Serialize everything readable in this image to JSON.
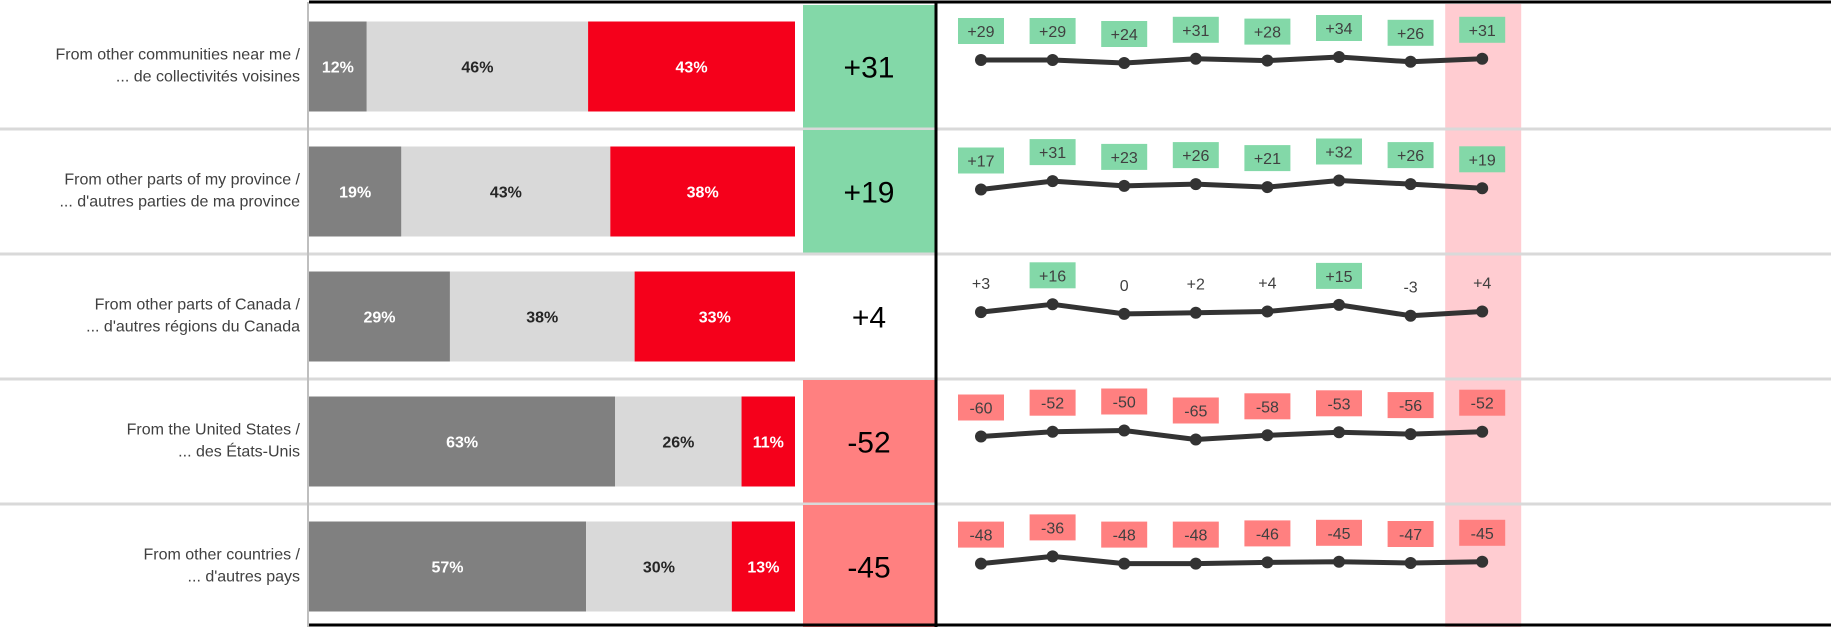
{
  "chart_data": {
    "type": "bar",
    "stacked": true,
    "percent_scale": true,
    "rows": [
      {
        "label_en": "From other communities near me /",
        "label_fr": "... de collectivités voisines",
        "segments": [
          12,
          46,
          43
        ],
        "segment_labels": [
          "12%",
          "46%",
          "43%"
        ],
        "net": "+31",
        "trend": [
          29,
          29,
          24,
          31,
          28,
          34,
          26,
          31
        ],
        "trend_labels": [
          "+29",
          "+29",
          "+24",
          "+31",
          "+28",
          "+34",
          "+26",
          "+31"
        ]
      },
      {
        "label_en": "From other parts of my province /",
        "label_fr": "... d'autres parties de ma province",
        "segments": [
          19,
          43,
          38
        ],
        "segment_labels": [
          "19%",
          "43%",
          "38%"
        ],
        "net": "+19",
        "trend": [
          17,
          31,
          23,
          26,
          21,
          32,
          26,
          19
        ],
        "trend_labels": [
          "+17",
          "+31",
          "+23",
          "+26",
          "+21",
          "+32",
          "+26",
          "+19"
        ]
      },
      {
        "label_en": "From other parts of Canada /",
        "label_fr": "... d'autres régions du Canada",
        "segments": [
          29,
          38,
          33
        ],
        "segment_labels": [
          "29%",
          "38%",
          "33%"
        ],
        "net": "+4",
        "trend": [
          3,
          16,
          0,
          2,
          4,
          15,
          -3,
          4
        ],
        "trend_labels": [
          "+3",
          "+16",
          "0",
          "+2",
          "+4",
          "+15",
          "-3",
          "+4"
        ]
      },
      {
        "label_en": "From the United States /",
        "label_fr": "... des États-Unis",
        "segments": [
          63,
          26,
          11
        ],
        "segment_labels": [
          "63%",
          "26%",
          "11%"
        ],
        "net": "-52",
        "trend": [
          -60,
          -52,
          -50,
          -65,
          -58,
          -53,
          -56,
          -52
        ],
        "trend_labels": [
          "-60",
          "-52",
          "-50",
          "-65",
          "-58",
          "-53",
          "-56",
          "-52"
        ]
      },
      {
        "label_en": "From other countries /",
        "label_fr": "... d'autres pays",
        "segments": [
          57,
          30,
          13
        ],
        "segment_labels": [
          "57%",
          "30%",
          "13%"
        ],
        "net": "-45",
        "trend": [
          -48,
          -36,
          -48,
          -48,
          -46,
          -45,
          -47,
          -45
        ],
        "trend_labels": [
          "-48",
          "-36",
          "-48",
          "-48",
          "-46",
          "-45",
          "-47",
          "-45"
        ]
      }
    ],
    "colors": {
      "segment_1": "#808080",
      "segment_2": "#d9d9d9",
      "segment_3": "#f5001b",
      "segment_label_light": "#ffffff",
      "segment_label_dark": "#262626",
      "net_positive_fill": "#83d8a8",
      "net_negative_fill": "#ff8080",
      "trend_line": "#333333",
      "trend_label_positive_bg": "#83d8a8",
      "trend_label_negative_bg": "#ff8080",
      "latest_highlight": "#ffccd1",
      "divider": "#d9d9d9",
      "axis": "#000000"
    },
    "latest_point_highlighted": true,
    "grid": false,
    "legend": "none"
  }
}
